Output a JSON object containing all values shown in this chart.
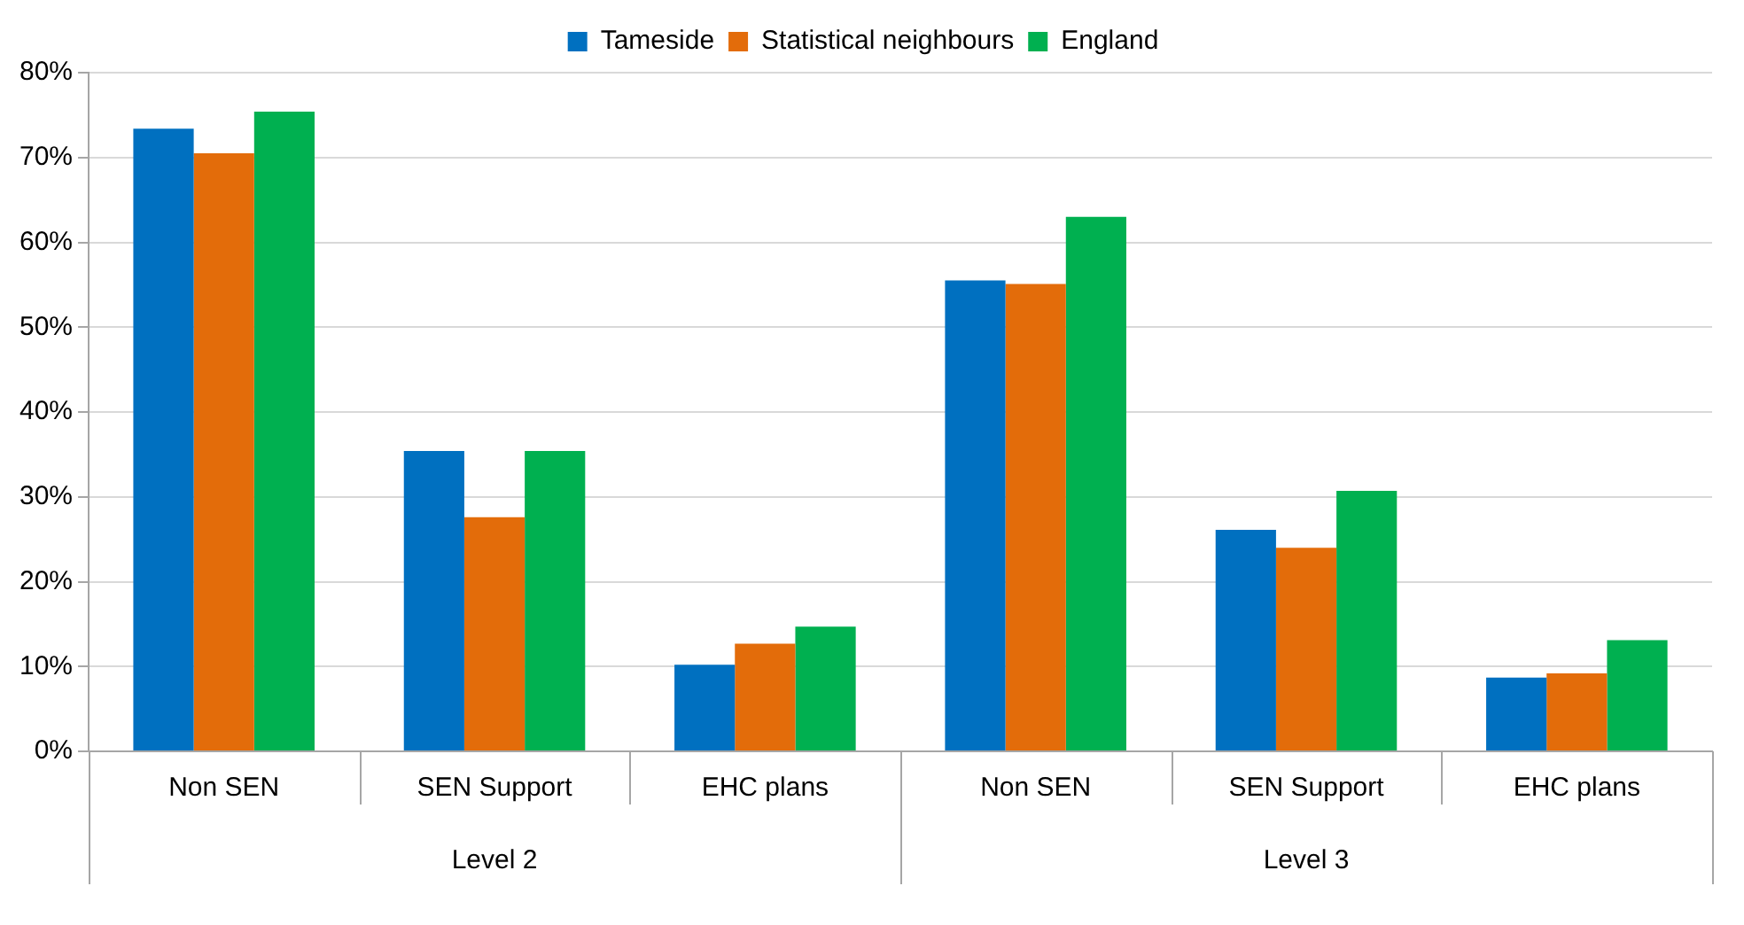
{
  "chart_data": {
    "type": "bar",
    "categories": [
      "Non SEN",
      "SEN Support",
      "EHC plans",
      "Non SEN",
      "SEN Support",
      "EHC plans"
    ],
    "annotations": [
      "Level 2",
      "Level 3"
    ],
    "series": [
      {
        "name": "Tameside",
        "color": "#0070c0",
        "values": [
          73.4,
          35.4,
          10.2,
          55.5,
          26.1,
          8.7
        ]
      },
      {
        "name": "Statistical neighbours",
        "color": "#e36c0a",
        "values": [
          70.5,
          27.6,
          12.7,
          55.1,
          24.0,
          9.2
        ]
      },
      {
        "name": "England",
        "color": "#00b050",
        "values": [
          75.4,
          35.4,
          14.7,
          63.0,
          30.7,
          13.1
        ]
      }
    ],
    "ylim": [
      0,
      80
    ],
    "yticks": [
      {
        "value": 0,
        "label": "0%"
      },
      {
        "value": 10,
        "label": "10%"
      },
      {
        "value": 20,
        "label": "20%"
      },
      {
        "value": 30,
        "label": "30%"
      },
      {
        "value": 40,
        "label": "40%"
      },
      {
        "value": 50,
        "label": "50%"
      },
      {
        "value": 60,
        "label": "60%"
      },
      {
        "value": 70,
        "label": "70%"
      },
      {
        "value": 80,
        "label": "80%"
      }
    ],
    "grid": "y",
    "legend": "top"
  }
}
